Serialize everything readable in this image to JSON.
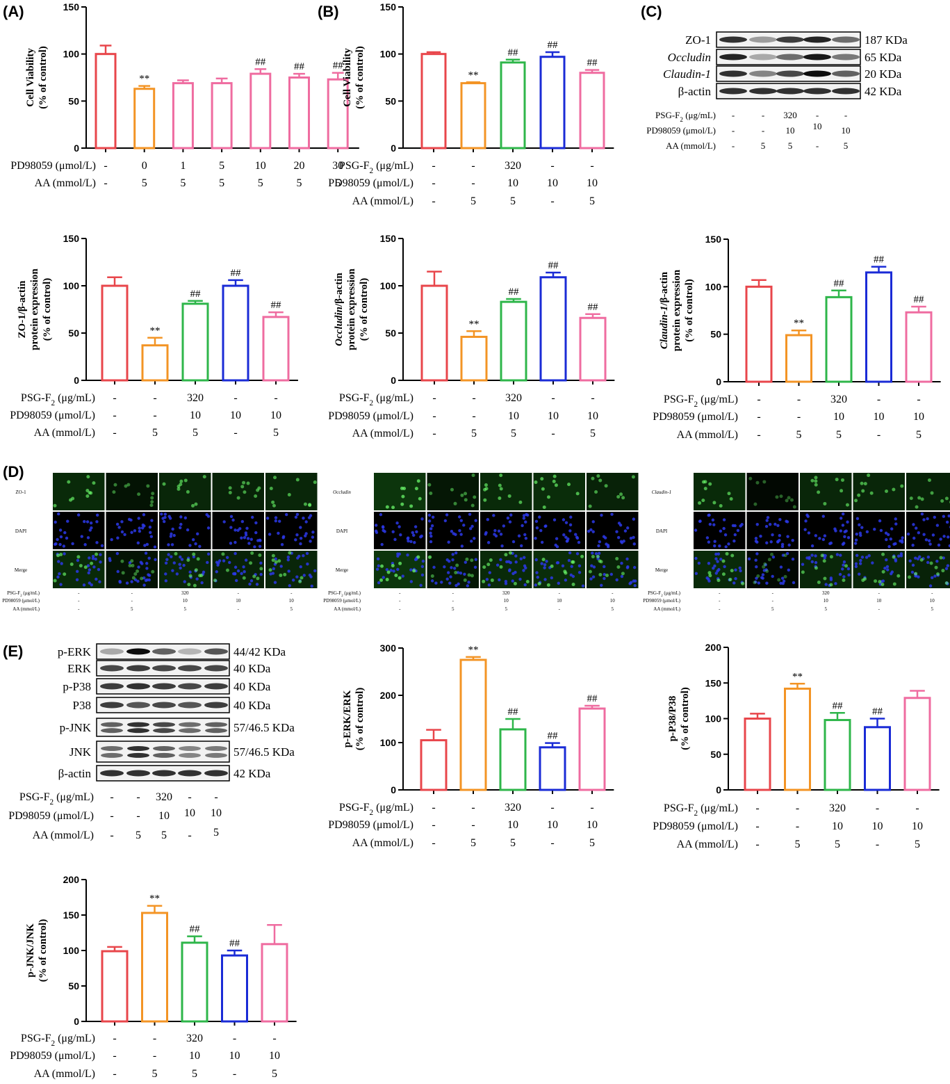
{
  "figure": {
    "bar_colors": [
      "#e8464b",
      "#f39425",
      "#2eb64a",
      "#1a2bd6",
      "#ef6ca0"
    ],
    "panel_a_colors": [
      "#e8464b",
      "#f39425",
      "#ef6ca0",
      "#ef6ca0",
      "#ef6ca0",
      "#ef6ca0",
      "#ef6ca0"
    ]
  },
  "panels": {
    "A": {
      "label": "(A)"
    },
    "B": {
      "label": "(B)"
    },
    "C": {
      "label": "(C)",
      "blot_rows": [
        {
          "name": "ZO-1",
          "kda": "187 KDa",
          "italic": false
        },
        {
          "name": "Occludin",
          "kda": "65 KDa",
          "italic": true
        },
        {
          "name": "Claudin-1",
          "kda": "20 KDa",
          "italic": true
        },
        {
          "name": "β-actin",
          "kda": "42 KDa",
          "italic": false
        }
      ],
      "conditions": {
        "labels": [
          "PSG-F2 (μg/mL)",
          "PD98059 (μmol/L)",
          "AA (mmol/L)"
        ],
        "rows": [
          [
            "-",
            "-",
            "320",
            "-",
            "-"
          ],
          [
            "-",
            "-",
            "10",
            "10",
            "10"
          ],
          [
            "-",
            "5",
            "5",
            "-",
            "5"
          ]
        ]
      }
    },
    "D": {
      "label": "(D)",
      "groups": [
        {
          "marker": "ZO-1",
          "rows": [
            "ZO-1",
            "DAPI",
            "Merge"
          ]
        },
        {
          "marker": "Occludin",
          "rows": [
            "Occludin",
            "DAPI",
            "Merge"
          ]
        },
        {
          "marker": "Claudin-1",
          "rows": [
            "Claudin-1",
            "DAPI",
            "Merge"
          ]
        }
      ],
      "conditions": {
        "labels": [
          "PSG-F2 (μg/mL)",
          "PD98059 (μmol/L)",
          "AA (mmol/L)"
        ],
        "rows": [
          [
            "-",
            "-",
            "320",
            "-",
            "-"
          ],
          [
            "-",
            "-",
            "10",
            "10",
            "10"
          ],
          [
            "-",
            "5",
            "5",
            "-",
            "5"
          ]
        ]
      }
    },
    "E": {
      "label": "(E)",
      "blot_rows": [
        {
          "name": "p-ERK",
          "kda": "44/42 KDa"
        },
        {
          "name": "ERK",
          "kda": "40 KDa"
        },
        {
          "name": "p-P38",
          "kda": "40 KDa"
        },
        {
          "name": "P38",
          "kda": "40 KDa"
        },
        {
          "name": "p-JNK",
          "kda": "57/46.5 KDa"
        },
        {
          "name": "JNK",
          "kda": "57/46.5 KDa"
        },
        {
          "name": "β-actin",
          "kda": "42 KDa"
        }
      ],
      "conditions": {
        "labels": [
          "PSG-F2 (μg/mL)",
          "PD98059 (μmol/L)",
          "AA (mmol/L)"
        ],
        "rows": [
          [
            "-",
            "-",
            "320",
            "-",
            "-"
          ],
          [
            "-",
            "-",
            "10",
            "10",
            "10"
          ],
          [
            "-",
            "5",
            "5",
            "-",
            "5"
          ]
        ]
      }
    }
  },
  "chart_data": [
    {
      "id": "A",
      "type": "bar",
      "ylabel": [
        "Cell Viability",
        "(% of control)"
      ],
      "ylim": [
        0,
        150
      ],
      "yticks": [
        0,
        50,
        100,
        150
      ],
      "values": [
        100,
        63,
        69,
        69,
        79,
        75,
        73
      ],
      "errors": [
        9,
        3,
        3,
        5,
        5,
        4,
        7
      ],
      "sig": [
        "",
        "**",
        "",
        "",
        "##",
        "##",
        "##"
      ],
      "conditions": {
        "labels": [
          "PD98059 (μmol/L)",
          "AA (mmol/L)"
        ],
        "rows": [
          [
            "-",
            "0",
            "1",
            "5",
            "10",
            "20",
            "30"
          ],
          [
            "-",
            "5",
            "5",
            "5",
            "5",
            "5",
            "5"
          ]
        ]
      }
    },
    {
      "id": "B",
      "type": "bar",
      "ylabel": [
        "Cell Viability",
        "(% of control)"
      ],
      "ylim": [
        0,
        150
      ],
      "yticks": [
        0,
        50,
        100,
        150
      ],
      "values": [
        100,
        69,
        91,
        97,
        80
      ],
      "errors": [
        2,
        1,
        3,
        5,
        3
      ],
      "sig": [
        "",
        "**",
        "##",
        "##",
        "##"
      ],
      "conditions": {
        "labels": [
          "PSG-F2 (μg/mL)",
          "PD98059 (μmol/L)",
          "AA (mmol/L)"
        ],
        "rows": [
          [
            "-",
            "-",
            "320",
            "-",
            "-"
          ],
          [
            "-",
            "-",
            "10",
            "10",
            "10"
          ],
          [
            "-",
            "5",
            "5",
            "-",
            "5"
          ]
        ]
      }
    },
    {
      "id": "C1",
      "type": "bar",
      "ylabel": [
        "ZO-1/β-actin",
        "protein expression",
        "(% of control)"
      ],
      "ylim": [
        0,
        150
      ],
      "yticks": [
        0,
        50,
        100,
        150
      ],
      "values": [
        100,
        37,
        81,
        100,
        67
      ],
      "errors": [
        9,
        8,
        3,
        6,
        5
      ],
      "sig": [
        "",
        "**",
        "##",
        "##",
        "##"
      ],
      "conditions": {
        "labels": [
          "PSG-F2 (μg/mL)",
          "PD98059 (μmol/L)",
          "AA (mmol/L)"
        ],
        "rows": [
          [
            "-",
            "-",
            "320",
            "-",
            "-"
          ],
          [
            "-",
            "-",
            "10",
            "10",
            "10"
          ],
          [
            "-",
            "5",
            "5",
            "-",
            "5"
          ]
        ]
      }
    },
    {
      "id": "C2",
      "type": "bar",
      "ylabel": [
        "Occludin/β-actin",
        "protein expression",
        "(% of control)"
      ],
      "ylim": [
        0,
        150
      ],
      "yticks": [
        0,
        50,
        100,
        150
      ],
      "values": [
        100,
        46,
        83,
        109,
        66
      ],
      "errors": [
        15,
        6,
        3,
        5,
        4
      ],
      "sig": [
        "",
        "**",
        "##",
        "##",
        "##"
      ],
      "conditions": {
        "labels": [
          "PSG-F2 (μg/mL)",
          "PD98059 (μmol/L)",
          "AA (mmol/L)"
        ],
        "rows": [
          [
            "-",
            "-",
            "320",
            "-",
            "-"
          ],
          [
            "-",
            "-",
            "10",
            "10",
            "10"
          ],
          [
            "-",
            "5",
            "5",
            "-",
            "5"
          ]
        ]
      }
    },
    {
      "id": "C3",
      "type": "bar",
      "ylabel": [
        "Claudin-1/β-actin",
        "protein expression",
        "(% of control)"
      ],
      "ylim": [
        0,
        150
      ],
      "yticks": [
        0,
        50,
        100,
        150
      ],
      "values": [
        100,
        49,
        89,
        115,
        73
      ],
      "errors": [
        7,
        5,
        7,
        6,
        6
      ],
      "sig": [
        "",
        "**",
        "##",
        "##",
        "##"
      ],
      "conditions": {
        "labels": [
          "PSG-F2 (μg/mL)",
          "PD98059 (μmol/L)",
          "AA (mmol/L)"
        ],
        "rows": [
          [
            "-",
            "-",
            "320",
            "-",
            "-"
          ],
          [
            "-",
            "-",
            "10",
            "10",
            "10"
          ],
          [
            "-",
            "5",
            "5",
            "-",
            "5"
          ]
        ]
      }
    },
    {
      "id": "E1",
      "type": "bar",
      "ylabel": [
        "p-ERK/ERK",
        "(% of control)"
      ],
      "ylim": [
        0,
        300
      ],
      "yticks": [
        0,
        100,
        200,
        300
      ],
      "values": [
        105,
        275,
        128,
        90,
        172
      ],
      "errors": [
        22,
        6,
        22,
        9,
        6
      ],
      "sig": [
        "",
        "**",
        "##",
        "##",
        "##"
      ],
      "conditions": {
        "labels": [
          "PSG-F2 (μg/mL)",
          "PD98059 (μmol/L)",
          "AA (mmol/L)"
        ],
        "rows": [
          [
            "-",
            "-",
            "320",
            "-",
            "-"
          ],
          [
            "-",
            "-",
            "10",
            "10",
            "10"
          ],
          [
            "-",
            "5",
            "5",
            "-",
            "5"
          ]
        ]
      }
    },
    {
      "id": "E2",
      "type": "bar",
      "ylabel": [
        "p-P38/P38",
        "(% of control)"
      ],
      "ylim": [
        0,
        200
      ],
      "yticks": [
        0,
        50,
        100,
        150,
        200
      ],
      "values": [
        100,
        142,
        98,
        88,
        129
      ],
      "errors": [
        7,
        7,
        10,
        12,
        10
      ],
      "sig": [
        "",
        "**",
        "##",
        "##",
        ""
      ],
      "conditions": {
        "labels": [
          "PSG-F2 (μg/mL)",
          "PD98059 (μmol/L)",
          "AA (mmol/L)"
        ],
        "rows": [
          [
            "-",
            "-",
            "320",
            "-",
            "-"
          ],
          [
            "-",
            "-",
            "10",
            "10",
            "10"
          ],
          [
            "-",
            "5",
            "5",
            "-",
            "5"
          ]
        ]
      }
    },
    {
      "id": "E3",
      "type": "bar",
      "ylabel": [
        "p-JNK/JNK",
        "(% of control)"
      ],
      "ylim": [
        0,
        200
      ],
      "yticks": [
        0,
        50,
        100,
        150,
        200
      ],
      "values": [
        99,
        153,
        111,
        93,
        109
      ],
      "errors": [
        6,
        10,
        9,
        7,
        27
      ],
      "sig": [
        "",
        "**",
        "##",
        "##",
        ""
      ],
      "conditions": {
        "labels": [
          "PSG-F2 (μg/mL)",
          "PD98059 (μmol/L)",
          "AA (mmol/L)"
        ],
        "rows": [
          [
            "-",
            "-",
            "320",
            "-",
            "-"
          ],
          [
            "-",
            "-",
            "10",
            "10",
            "10"
          ],
          [
            "-",
            "5",
            "5",
            "-",
            "5"
          ]
        ]
      }
    }
  ]
}
